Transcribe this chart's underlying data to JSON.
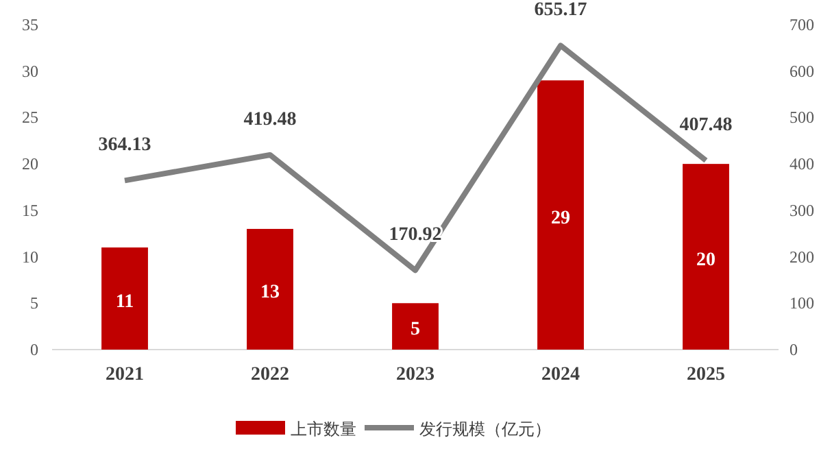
{
  "chart_data": {
    "type": "bar",
    "categories": [
      "2021",
      "2022",
      "2023",
      "2024",
      "2025"
    ],
    "series": [
      {
        "name": "上市数量",
        "color": "#c00000",
        "values": [
          11,
          13,
          5,
          29,
          20
        ]
      },
      {
        "name": "发行规模（亿元）",
        "type": "line",
        "axis": "y2",
        "color": "#808080",
        "values": [
          364.13,
          419.48,
          170.92,
          655.17,
          407.48
        ]
      }
    ],
    "ylim": [
      0,
      35
    ],
    "yticks": [
      0,
      5,
      10,
      15,
      20,
      25,
      30,
      35
    ],
    "y2lim": [
      0,
      700
    ],
    "y2ticks": [
      0,
      100,
      200,
      300,
      400,
      500,
      600,
      700
    ],
    "data_labels": true,
    "legend": "bottom"
  }
}
